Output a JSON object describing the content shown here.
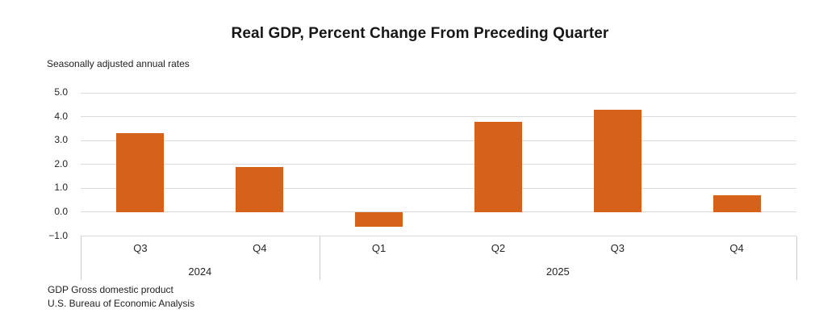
{
  "header": {
    "title": "Real GDP, Percent Change From Preceding Quarter",
    "subtitle": "Seasonally adjusted annual rates"
  },
  "footer": {
    "line1": "GDP Gross domestic product",
    "line2": "U.S. Bureau of Economic Analysis"
  },
  "chart_data": {
    "type": "bar",
    "title": "Real GDP, Percent Change From Preceding Quarter",
    "subtitle": "Seasonally adjusted annual rates",
    "categories": [
      "Q3",
      "Q4",
      "Q1",
      "Q2",
      "Q3",
      "Q4"
    ],
    "year_groups": [
      {
        "label": "2024",
        "count": 2
      },
      {
        "label": "2025",
        "count": 4
      }
    ],
    "values": [
      3.3,
      1.9,
      -0.6,
      3.8,
      4.3,
      0.7
    ],
    "unit": "percent, seasonally adjusted annual rate",
    "ylim": [
      -1.0,
      5.0
    ],
    "ytick_step": 1.0,
    "ytick_labels": [
      "5.0",
      "4.0",
      "3.0",
      "2.0",
      "1.0",
      "0.0",
      "−1.0"
    ],
    "grid": true,
    "legend": "none",
    "bar_color": "#D5611A",
    "gridline_color": "#DADADA",
    "axis_line_color": "#C9C9C9",
    "text_color": "#262626"
  }
}
